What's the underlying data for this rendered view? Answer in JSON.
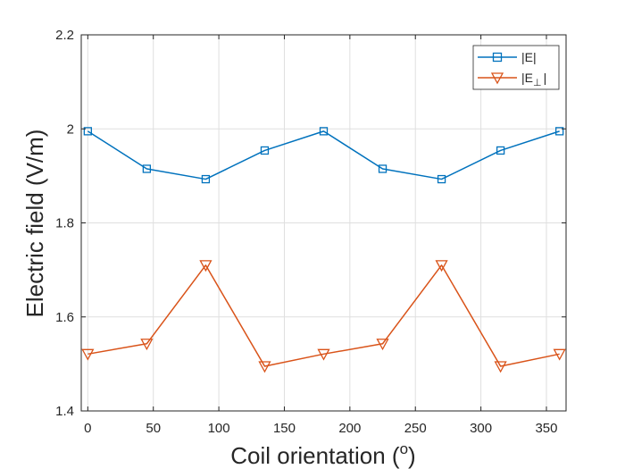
{
  "chart_data": {
    "type": "line",
    "xlabel": "Coil orientation (",
    "xlabel_sup": "o",
    "xlabel_end": ")",
    "ylabel": "Electric field (V/m)",
    "xlim": [
      -5,
      365
    ],
    "ylim": [
      1.4,
      2.2
    ],
    "xticks": [
      0,
      50,
      100,
      150,
      200,
      250,
      300,
      350
    ],
    "yticks": [
      1.4,
      1.6,
      1.8,
      2.0,
      2.2
    ],
    "xtick_labels": [
      "0",
      "50",
      "100",
      "150",
      "200",
      "250",
      "300",
      "350"
    ],
    "ytick_labels": [
      "1.4",
      "1.6",
      "1.8",
      "2",
      "2.2"
    ],
    "grid": true,
    "legend_position": "top-right",
    "x": [
      0,
      45,
      90,
      135,
      180,
      225,
      270,
      315,
      360
    ],
    "series": [
      {
        "name": "|E|",
        "values": [
          1.995,
          1.915,
          1.893,
          1.954,
          1.995,
          1.915,
          1.893,
          1.954,
          1.995
        ],
        "color": "#0072BD",
        "marker": "square"
      },
      {
        "name": "|E⊥|",
        "name_main": "|E",
        "name_sub": "⊥",
        "name_end": "|",
        "values": [
          1.521,
          1.543,
          1.71,
          1.495,
          1.521,
          1.543,
          1.71,
          1.495,
          1.521
        ],
        "color": "#D95319",
        "marker": "triangle-down"
      }
    ]
  }
}
